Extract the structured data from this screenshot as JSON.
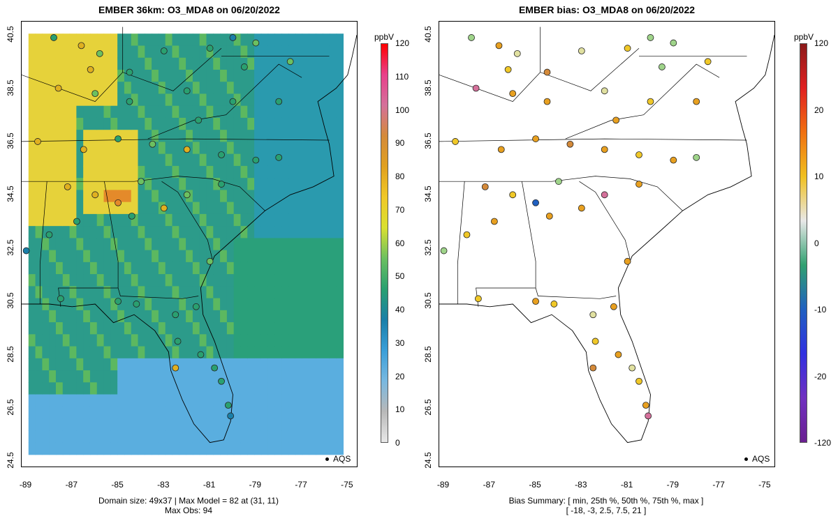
{
  "left_panel": {
    "title": "EMBER 36km: O3_MDA8 on 06/20/2022",
    "footer_line1": "Domain size: 49x37 | Max Model = 82 at (31, 11)",
    "footer_line2": "Max Obs: 94",
    "legend_label": "AQS",
    "colorbar": {
      "unit": "ppbV",
      "ticks": [
        "120",
        "110",
        "100",
        "90",
        "80",
        "70",
        "60",
        "50",
        "40",
        "30",
        "20",
        "10",
        "0"
      ],
      "colors": [
        "#ff0000",
        "#e8408a",
        "#d4709a",
        "#d48a3a",
        "#e0a020",
        "#f0c828",
        "#d9e030",
        "#6cc060",
        "#2aa070",
        "#1a7fa8",
        "#3a9ed8",
        "#78b8e0",
        "#b8b8b8",
        "#e8e8e8"
      ]
    }
  },
  "right_panel": {
    "title": "EMBER bias: O3_MDA8 on 06/20/2022",
    "footer_line1": "Bias Summary: [ min, 25th %, 50th %, 75th %, max ]",
    "footer_line2": "[ -18,   -3,   2.5,   7.5,   21 ]",
    "legend_label": "AQS",
    "colorbar": {
      "unit": "ppbV",
      "ticks": [
        "120",
        "20",
        "10",
        "0",
        "-10",
        "-20",
        "-120"
      ],
      "colors": [
        "#8b1a1a",
        "#e02020",
        "#f07010",
        "#f0c020",
        "#e8e8e8",
        "#30a070",
        "#2060c0",
        "#3030e0",
        "#7030c0",
        "#6a2090"
      ]
    }
  },
  "axes": {
    "y_ticks": [
      "40.5",
      "38.5",
      "36.5",
      "34.5",
      "32.5",
      "30.5",
      "28.5",
      "26.5",
      "24.5"
    ],
    "x_ticks": [
      "-89",
      "-87",
      "-85",
      "-83",
      "-81",
      "-79",
      "-77",
      "-75"
    ],
    "x_range": [
      -89.2,
      -74.6
    ],
    "y_range": [
      24.3,
      41.0
    ]
  },
  "model_grid_colors": {
    "low": "#5aaedf",
    "mid": "#2c9b8a",
    "green": "#5cb860",
    "high": "#e6d23a",
    "peak": "#e48a2a"
  },
  "stations": [
    {
      "lon": -87.8,
      "lat": 40.4,
      "obs": "#2aa070",
      "bias": "#9fd48a"
    },
    {
      "lon": -86.6,
      "lat": 40.1,
      "obs": "#e0b020",
      "bias": "#e8a020"
    },
    {
      "lon": -85.8,
      "lat": 39.8,
      "obs": "#6cc060",
      "bias": "#e0e0a0"
    },
    {
      "lon": -86.2,
      "lat": 39.2,
      "obs": "#e0b020",
      "bias": "#f0c828"
    },
    {
      "lon": -84.5,
      "lat": 39.1,
      "obs": "#2aa070",
      "bias": "#d48a3a"
    },
    {
      "lon": -83.0,
      "lat": 39.9,
      "obs": "#2aa070",
      "bias": "#e0e0a0"
    },
    {
      "lon": -81.0,
      "lat": 40.0,
      "obs": "#2aa070",
      "bias": "#f0c828"
    },
    {
      "lon": -80.0,
      "lat": 40.4,
      "obs": "#1a7fa8",
      "bias": "#9fd48a"
    },
    {
      "lon": -79.0,
      "lat": 40.2,
      "obs": "#6cc060",
      "bias": "#9fd48a"
    },
    {
      "lon": -77.5,
      "lat": 39.5,
      "obs": "#6cc060",
      "bias": "#f0c828"
    },
    {
      "lon": -87.6,
      "lat": 38.5,
      "obs": "#e0b020",
      "bias": "#d4709a"
    },
    {
      "lon": -86.0,
      "lat": 38.3,
      "obs": "#6cc060",
      "bias": "#e8a020"
    },
    {
      "lon": -84.5,
      "lat": 38.0,
      "obs": "#2aa070",
      "bias": "#e8a020"
    },
    {
      "lon": -82.0,
      "lat": 38.4,
      "obs": "#2aa070",
      "bias": "#e0e0a0"
    },
    {
      "lon": -80.0,
      "lat": 38.0,
      "obs": "#2aa070",
      "bias": "#f0c828"
    },
    {
      "lon": -78.0,
      "lat": 38.0,
      "obs": "#2aa070",
      "bias": "#e8a020"
    },
    {
      "lon": -88.5,
      "lat": 36.5,
      "obs": "#e0b020",
      "bias": "#f0c828"
    },
    {
      "lon": -86.5,
      "lat": 36.2,
      "obs": "#e0b020",
      "bias": "#e8a020"
    },
    {
      "lon": -85.0,
      "lat": 36.6,
      "obs": "#2aa070",
      "bias": "#e8a020"
    },
    {
      "lon": -83.5,
      "lat": 36.4,
      "obs": "#6cc060",
      "bias": "#d48a3a"
    },
    {
      "lon": -82.0,
      "lat": 36.2,
      "obs": "#e0b020",
      "bias": "#e8a020"
    },
    {
      "lon": -80.5,
      "lat": 36.0,
      "obs": "#2aa070",
      "bias": "#f0c828"
    },
    {
      "lon": -79.0,
      "lat": 35.8,
      "obs": "#2aa070",
      "bias": "#e8a020"
    },
    {
      "lon": -78.0,
      "lat": 35.9,
      "obs": "#2aa070",
      "bias": "#9fd48a"
    },
    {
      "lon": -87.2,
      "lat": 34.8,
      "obs": "#e0b020",
      "bias": "#d48a3a"
    },
    {
      "lon": -86.0,
      "lat": 34.5,
      "obs": "#e0b020",
      "bias": "#f0c828"
    },
    {
      "lon": -85.0,
      "lat": 34.2,
      "obs": "#e48a2a",
      "bias": "#2060c0"
    },
    {
      "lon": -83.0,
      "lat": 34.0,
      "obs": "#e0b020",
      "bias": "#e8a020"
    },
    {
      "lon": -82.0,
      "lat": 34.5,
      "obs": "#6cc060",
      "bias": "#d4709a"
    },
    {
      "lon": -80.5,
      "lat": 34.9,
      "obs": "#2aa070",
      "bias": "#e8a020"
    },
    {
      "lon": -88.0,
      "lat": 33.0,
      "obs": "#2aa070",
      "bias": "#f0c828"
    },
    {
      "lon": -86.8,
      "lat": 33.5,
      "obs": "#2aa070",
      "bias": "#e8a020"
    },
    {
      "lon": -84.4,
      "lat": 33.7,
      "obs": "#2aa070",
      "bias": "#e8a020"
    },
    {
      "lon": -81.0,
      "lat": 32.0,
      "obs": "#6cc060",
      "bias": "#e8a020"
    },
    {
      "lon": -89.0,
      "lat": 32.4,
      "obs": "#1a7fa8",
      "bias": "#9fd48a"
    },
    {
      "lon": -87.5,
      "lat": 30.6,
      "obs": "#2aa070",
      "bias": "#f0c828"
    },
    {
      "lon": -85.0,
      "lat": 30.5,
      "obs": "#2aa070",
      "bias": "#e8a020"
    },
    {
      "lon": -84.2,
      "lat": 30.4,
      "obs": "#2aa070",
      "bias": "#f0c828"
    },
    {
      "lon": -82.5,
      "lat": 30.0,
      "obs": "#2aa070",
      "bias": "#e0e0a0"
    },
    {
      "lon": -81.6,
      "lat": 30.3,
      "obs": "#2aa070",
      "bias": "#e8a020"
    },
    {
      "lon": -82.4,
      "lat": 29.0,
      "obs": "#2aa070",
      "bias": "#f0c828"
    },
    {
      "lon": -82.5,
      "lat": 28.0,
      "obs": "#e0b020",
      "bias": "#d48a3a"
    },
    {
      "lon": -81.4,
      "lat": 28.5,
      "obs": "#2aa070",
      "bias": "#e8a020"
    },
    {
      "lon": -80.8,
      "lat": 28.0,
      "obs": "#2aa070",
      "bias": "#e0e0a0"
    },
    {
      "lon": -80.5,
      "lat": 27.5,
      "obs": "#2aa070",
      "bias": "#f0c828"
    },
    {
      "lon": -80.2,
      "lat": 26.6,
      "obs": "#2aa070",
      "bias": "#e8a020"
    },
    {
      "lon": -80.1,
      "lat": 26.2,
      "obs": "#1a7fa8",
      "bias": "#d4709a"
    },
    {
      "lon": -79.5,
      "lat": 39.3,
      "obs": "#2aa070",
      "bias": "#9fd48a"
    },
    {
      "lon": -81.5,
      "lat": 37.3,
      "obs": "#2aa070",
      "bias": "#e8a020"
    },
    {
      "lon": -84.0,
      "lat": 35.0,
      "obs": "#6cc060",
      "bias": "#9fd48a"
    }
  ]
}
